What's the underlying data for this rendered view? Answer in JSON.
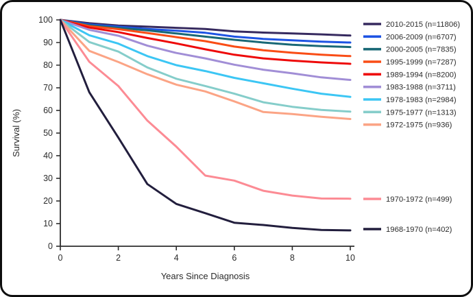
{
  "card": {
    "background": "#ffffff",
    "border_color": "#0e0e0e"
  },
  "chart_data": {
    "type": "line",
    "title": "",
    "xlabel": "Years Since Diagnosis",
    "ylabel": "Survival (%)",
    "xlim": [
      0,
      10
    ],
    "ylim": [
      0,
      100
    ],
    "x_ticks": [
      0,
      2,
      4,
      6,
      8,
      10
    ],
    "y_ticks": [
      0,
      10,
      20,
      30,
      40,
      50,
      60,
      70,
      80,
      90,
      100
    ],
    "grid": false,
    "legend_position": "right",
    "axis_color": "#2b2b2b",
    "x": [
      0,
      1,
      2,
      3,
      4,
      5,
      6,
      7,
      8,
      9,
      10
    ],
    "series": [
      {
        "name": "2010-2015",
        "label": "2010-2015 (n=11806)",
        "color": "#362a5f",
        "values": [
          100,
          98.5,
          97.5,
          97,
          96.5,
          96,
          94.9,
          94.4,
          94,
          93.6,
          93.1
        ]
      },
      {
        "name": "2006-2009",
        "label": "2006-2009 (n=6707)",
        "color": "#1d53e3",
        "values": [
          100,
          98,
          97,
          96,
          95.2,
          94.3,
          92.6,
          91.6,
          91,
          90.4,
          90
        ]
      },
      {
        "name": "2000-2005",
        "label": "2000-2005 (n=7835)",
        "color": "#196876",
        "values": [
          100,
          97.6,
          96.5,
          95.4,
          94,
          92.6,
          91.2,
          90,
          89,
          88.4,
          88
        ]
      },
      {
        "name": "1995-1999",
        "label": "1995-1999 (n=7287)",
        "color": "#f94d16",
        "values": [
          100,
          97.2,
          95.9,
          94.2,
          92.4,
          90.6,
          88.2,
          86.6,
          85.5,
          84.6,
          84
        ]
      },
      {
        "name": "1989-1994",
        "label": "1989-1994 (n=8200)",
        "color": "#ee0909",
        "values": [
          100,
          96.6,
          94.6,
          92,
          89.6,
          87,
          84.6,
          83,
          82,
          81.2,
          80.6
        ]
      },
      {
        "name": "1983-1988",
        "label": "1983-1988 (n=3711)",
        "color": "#a18ed6",
        "values": [
          100,
          95.6,
          93,
          88.6,
          85.4,
          83,
          80.2,
          78,
          76.4,
          74.6,
          73.5
        ]
      },
      {
        "name": "1978-1983",
        "label": "1978-1983 (n=2984)",
        "color": "#3cc6f4",
        "values": [
          100,
          93.2,
          89.5,
          84,
          80,
          77.4,
          74.4,
          72,
          69.6,
          67.4,
          66
        ]
      },
      {
        "name": "1975-1977",
        "label": "1975-1977 (n=1313)",
        "color": "#85cdca",
        "values": [
          100,
          90.2,
          86,
          79,
          74,
          70.8,
          67.4,
          63.6,
          61.6,
          60.2,
          59.5
        ]
      },
      {
        "name": "1972-1975",
        "label": "1972-1975 (n=936)",
        "color": "#fba485",
        "values": [
          100,
          86.3,
          81.4,
          76,
          71.4,
          68.4,
          64,
          59.3,
          58.4,
          57.2,
          56.2
        ]
      },
      {
        "name": "1970-1972",
        "label": "1970-1972 (n=499)",
        "color": "#fc8b94",
        "values": [
          100,
          81.5,
          70.8,
          55.5,
          44,
          31.2,
          29,
          24.5,
          22.4,
          21.1,
          21
        ]
      },
      {
        "name": "1968-1970",
        "label": "1968-1970 (n=402)",
        "color": "#221e3d",
        "values": [
          100,
          68,
          48,
          27.5,
          18.7,
          14.6,
          10.4,
          9.4,
          8.1,
          7.2,
          7
        ]
      }
    ]
  }
}
